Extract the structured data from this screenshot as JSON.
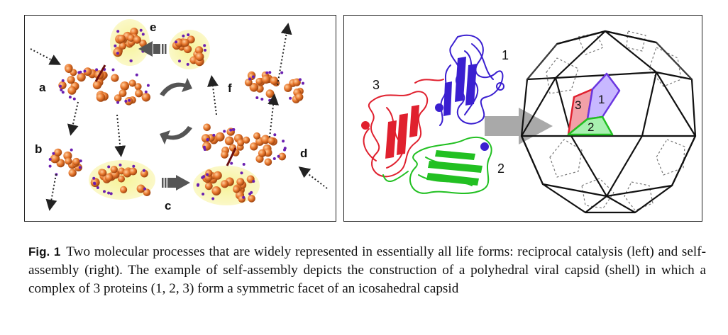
{
  "figure": {
    "left_panel": {
      "labels": {
        "a": "a",
        "b": "b",
        "c": "c",
        "d": "d",
        "e": "e",
        "f": "f"
      }
    },
    "right_panel": {
      "protein_labels": {
        "p1": "1",
        "p2": "2",
        "p3": "3"
      },
      "facet_labels": {
        "f1": "1",
        "f2": "2",
        "f3": "3"
      },
      "colors": {
        "protein1": "#3a1fd0",
        "protein2": "#22c022",
        "protein3": "#e0202e",
        "arrow": "#a9a9a9"
      }
    }
  },
  "caption": {
    "label": "Fig. 1",
    "text": "Two molecular processes that are widely represented in essentially all life forms: reciprocal catalysis (left) and self-assembly (right). The example of self-assembly depicts the construction of a polyhedral viral capsid (shell) in which a complex of 3 proteins (1, 2, 3) form a symmetric facet of an icosahedral capsid"
  }
}
